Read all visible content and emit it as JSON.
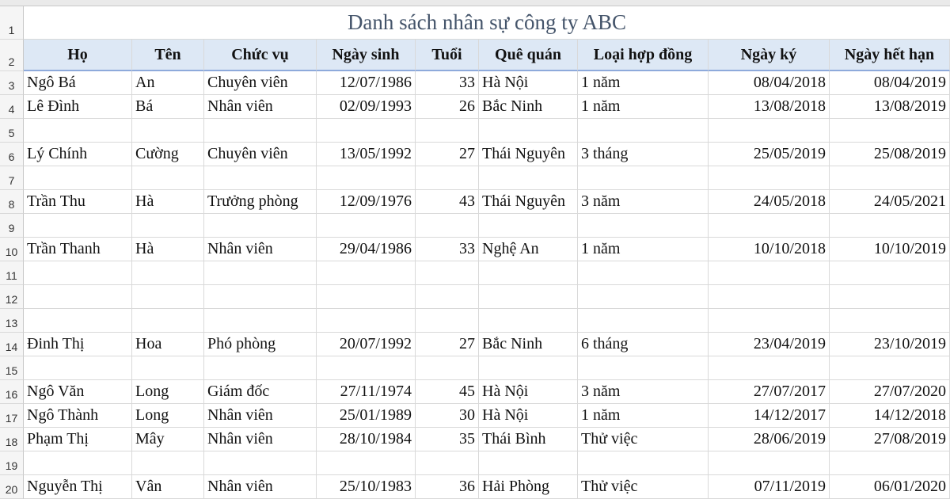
{
  "sheet": {
    "rows": [
      {
        "number": 1,
        "title": "Danh sách nhân sự công ty ABC"
      },
      {
        "number": 2,
        "cells": [
          "Họ",
          "Tên",
          "Chức vụ",
          "Ngày sinh",
          "Tuổi",
          "Quê quán",
          "Loại hợp đồng",
          "Ngày ký",
          "Ngày hết hạn"
        ]
      },
      {
        "number": 3,
        "cells": [
          "Ngô Bá",
          "An",
          "Chuyên viên",
          "12/07/1986",
          33,
          "Hà Nội",
          "1 năm",
          "08/04/2018",
          "08/04/2019"
        ]
      },
      {
        "number": 4,
        "cells": [
          "Lê Đình",
          "Bá",
          "Nhân viên",
          "02/09/1993",
          26,
          "Bắc Ninh",
          "1 năm",
          "13/08/2018",
          "13/08/2019"
        ]
      },
      {
        "number": 5
      },
      {
        "number": 6,
        "cells": [
          "Lý Chính",
          "Cường",
          "Chuyên viên",
          "13/05/1992",
          27,
          "Thái Nguyên",
          "3 tháng",
          "25/05/2019",
          "25/08/2019"
        ]
      },
      {
        "number": 7
      },
      {
        "number": 8,
        "cells": [
          "Trần Thu",
          "Hà",
          "Trưởng phòng",
          "12/09/1976",
          43,
          "Thái Nguyên",
          "3 năm",
          "24/05/2018",
          "24/05/2021"
        ]
      },
      {
        "number": 9
      },
      {
        "number": 10,
        "cells": [
          "Trần Thanh",
          "Hà",
          "Nhân viên",
          "29/04/1986",
          33,
          "Nghệ An",
          "1 năm",
          "10/10/2018",
          "10/10/2019"
        ]
      },
      {
        "number": 11
      },
      {
        "number": 12
      },
      {
        "number": 13
      },
      {
        "number": 14,
        "cells": [
          "Đinh Thị",
          "Hoa",
          "Phó phòng",
          "20/07/1992",
          27,
          "Bắc Ninh",
          "6 tháng",
          "23/04/2019",
          "23/10/2019"
        ]
      },
      {
        "number": 15
      },
      {
        "number": 16,
        "cells": [
          "Ngô Văn",
          "Long",
          "Giám đốc",
          "27/11/1974",
          45,
          "Hà Nội",
          "3 năm",
          "27/07/2017",
          "27/07/2020"
        ]
      },
      {
        "number": 17,
        "cells": [
          "Ngô Thành",
          "Long",
          "Nhân viên",
          "25/01/1989",
          30,
          "Hà Nội",
          "1 năm",
          "14/12/2017",
          "14/12/2018"
        ]
      },
      {
        "number": 18,
        "cells": [
          "Phạm Thị",
          "Mây",
          "Nhân viên",
          "28/10/1984",
          35,
          "Thái Bình",
          "Thử việc",
          "28/06/2019",
          "27/08/2019"
        ]
      },
      {
        "number": 19
      },
      {
        "number": 20,
        "cells": [
          "Nguyễn Thị",
          "Vân",
          "Nhân viên",
          "25/10/1983",
          36,
          "Hải Phòng",
          "Thử việc",
          "07/11/2019",
          "06/01/2020"
        ]
      }
    ]
  }
}
